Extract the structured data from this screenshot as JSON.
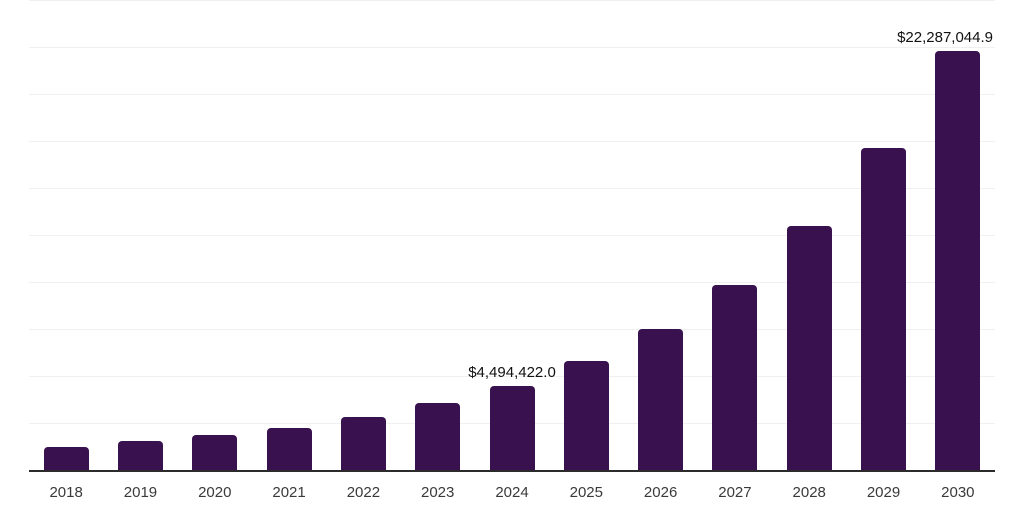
{
  "chart_data": {
    "type": "bar",
    "title": "",
    "xlabel": "",
    "ylabel": "",
    "categories": [
      "2018",
      "2019",
      "2020",
      "2021",
      "2022",
      "2023",
      "2024",
      "2025",
      "2026",
      "2027",
      "2028",
      "2029",
      "2030"
    ],
    "values": [
      1240000,
      1540000,
      1860000,
      2250000,
      2840000,
      3560000,
      4494422.0,
      5810000,
      7500000,
      9860000,
      12980000,
      17130000,
      22287044.9
    ],
    "data_labels": [
      "",
      "",
      "",
      "",
      "",
      "",
      "$4,494,422.0",
      "",
      "",
      "",
      "",
      "",
      "$22,287,044.9"
    ],
    "ylim": [
      0,
      25000000
    ],
    "grid_step": 2500000,
    "grid": "horizontal-only",
    "legend": "none",
    "y_tick_labels_visible": false,
    "colors": {
      "bar_fill": "#38114E",
      "gridline": "#f0f0f0",
      "axis_line": "#2b2b2b",
      "tick_label": "#3a3a3a",
      "data_label": "#111111",
      "background": "#ffffff"
    }
  }
}
